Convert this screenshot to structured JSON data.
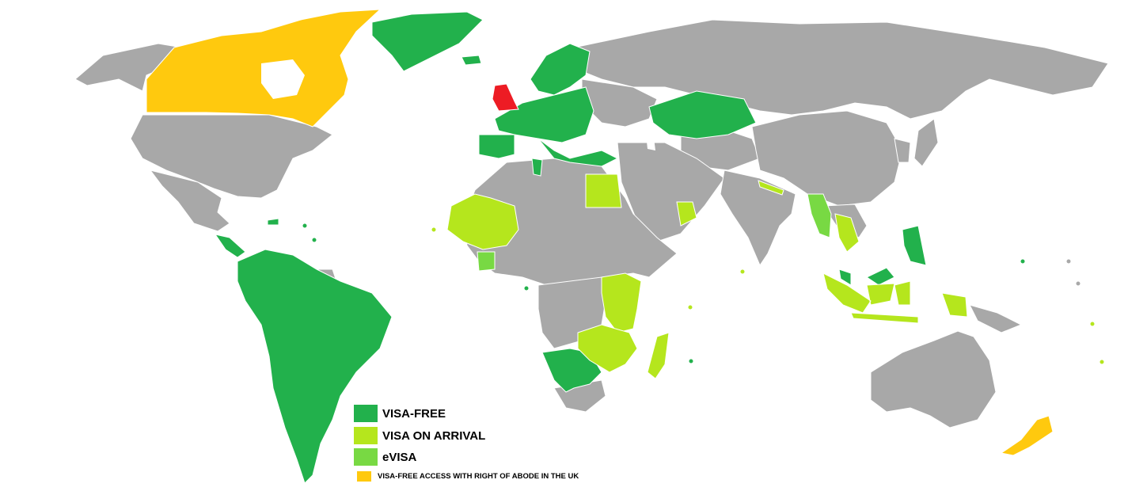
{
  "colors": {
    "ocean": "#ffffff",
    "other_country": "#a8a8a8",
    "border": "#ffffff",
    "visa_free": "#22b14c",
    "visa_on_arrival": "#b5e61d",
    "evisa": "#78d943",
    "right_of_abode": "#ffc90e",
    "home_country": "#ed1c24"
  },
  "legend": [
    {
      "key": "visa_free",
      "label": "VISA-FREE"
    },
    {
      "key": "visa_on_arrival",
      "label": "VISA ON ARRIVAL"
    },
    {
      "key": "evisa",
      "label": "eVISA"
    },
    {
      "key": "right_of_abode",
      "label": "VISA-FREE ACCESS WITH RIGHT OF ABODE IN THE UK"
    }
  ],
  "map": {
    "home_country": "United Kingdom",
    "regions": {
      "visa_free": [
        "Greenland",
        "Iceland",
        "Scandinavia",
        "Western Europe",
        "Iberia",
        "Central Europe",
        "Balkans",
        "Kazakhstan",
        "South America",
        "Central America",
        "Caribbean",
        "Tunisia",
        "Israel",
        "Namibia",
        "Botswana",
        "Malaysia",
        "Philippines",
        "Pacific Islands"
      ],
      "visa_on_arrival": [
        "Egypt",
        "Jordan",
        "West Africa",
        "East Africa",
        "Southern Africa",
        "Madagascar",
        "Oman",
        "Nepal",
        "Maldives",
        "Sri Lanka",
        "Laos",
        "Cambodia",
        "Indonesia",
        "Timor-Leste"
      ],
      "evisa": [
        "Myanmar",
        "Cote d'Ivoire"
      ],
      "right_of_abode": [
        "Canada",
        "New Zealand"
      ]
    }
  }
}
